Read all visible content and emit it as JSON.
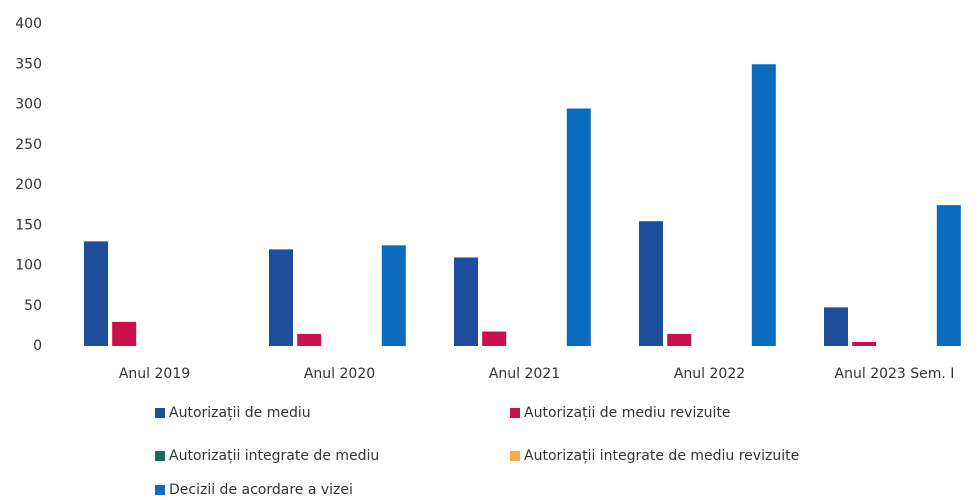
{
  "chart_data": {
    "type": "bar",
    "categories": [
      "Anul 2019",
      "Anul 2020",
      "Anul 2021",
      "Anul 2022",
      "Anul 2023 Sem. I"
    ],
    "series": [
      {
        "name": "Autorizații de mediu",
        "color": "#1f4e9c",
        "values": [
          130,
          120,
          110,
          155,
          48
        ]
      },
      {
        "name": "Autorizații de mediu revizuite",
        "color": "#c8104b",
        "values": [
          30,
          15,
          18,
          15,
          5
        ]
      },
      {
        "name": "Autorizații integrate de mediu",
        "color": "#1a6b5a",
        "values": [
          0,
          0,
          0,
          0,
          0
        ]
      },
      {
        "name": "Autorizații integrate de mediu revizuite",
        "color": "#f4a94a",
        "values": [
          0,
          0,
          0,
          0,
          0
        ]
      },
      {
        "name": "Decizii de acordare a vizei",
        "color": "#0a6bbf",
        "values": [
          0,
          125,
          295,
          350,
          175
        ]
      }
    ],
    "ylim": [
      0,
      400
    ],
    "yticks": [
      0,
      50,
      100,
      150,
      200,
      250,
      300,
      350,
      400
    ],
    "grid": false
  }
}
